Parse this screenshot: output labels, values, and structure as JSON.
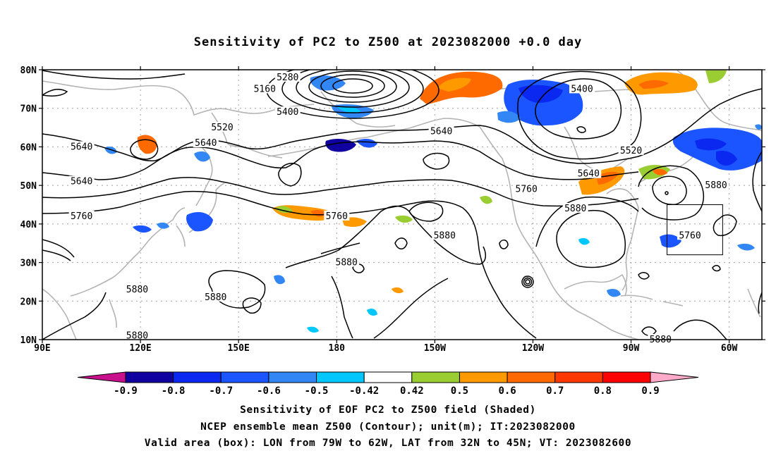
{
  "title": "Sensitivity of PC2 to Z500 at 2023082000 +0.0 day",
  "map": {
    "lat_labels": [
      "80N",
      "70N",
      "60N",
      "50N",
      "40N",
      "30N",
      "20N",
      "10N"
    ],
    "lon_labels": [
      "90E",
      "120E",
      "150E",
      "180",
      "150W",
      "120W",
      "90W",
      "60W"
    ],
    "extent": {
      "lon_min": 90,
      "lon_max": 310,
      "lat_min": 10,
      "lat_max": 80
    },
    "contour_labels": [
      {
        "text": "5280",
        "lon": 165,
        "lat": 78
      },
      {
        "text": "5160",
        "lon": 158,
        "lat": 75
      },
      {
        "text": "5400",
        "lon": 255,
        "lat": 75
      },
      {
        "text": "5400",
        "lon": 165,
        "lat": 69
      },
      {
        "text": "5520",
        "lon": 145,
        "lat": 65
      },
      {
        "text": "5640",
        "lon": 102,
        "lat": 60
      },
      {
        "text": "5640",
        "lon": 140,
        "lat": 61
      },
      {
        "text": "5640",
        "lon": 212,
        "lat": 64
      },
      {
        "text": "5520",
        "lon": 270,
        "lat": 59
      },
      {
        "text": "5640",
        "lon": 257,
        "lat": 53
      },
      {
        "text": "5640",
        "lon": 102,
        "lat": 51
      },
      {
        "text": "5760",
        "lon": 102,
        "lat": 42
      },
      {
        "text": "5760",
        "lon": 180,
        "lat": 42
      },
      {
        "text": "5760",
        "lon": 238,
        "lat": 49
      },
      {
        "text": "5880",
        "lon": 253,
        "lat": 44
      },
      {
        "text": "5880",
        "lon": 296,
        "lat": 50
      },
      {
        "text": "5760",
        "lon": 288,
        "lat": 37
      },
      {
        "text": "5880",
        "lon": 213,
        "lat": 37
      },
      {
        "text": "5880",
        "lon": 183,
        "lat": 30
      },
      {
        "text": "5880",
        "lon": 119,
        "lat": 23
      },
      {
        "text": "5880",
        "lon": 143,
        "lat": 21
      },
      {
        "text": "5880",
        "lon": 119,
        "lat": 11
      },
      {
        "text": "5880",
        "lon": 279,
        "lat": 10
      }
    ],
    "valid_box": {
      "lon_min": 281,
      "lon_max": 298,
      "lat_min": 32,
      "lat_max": 45
    }
  },
  "colorbar": {
    "labels": [
      "-0.9",
      "-0.8",
      "-0.7",
      "-0.6",
      "-0.5",
      "-0.42",
      "0.42",
      "0.5",
      "0.6",
      "0.7",
      "0.8",
      "0.9"
    ],
    "colors": [
      "#1000a0",
      "#0a28f0",
      "#1a55ff",
      "#3287f5",
      "#00c8ff",
      "#ffffff",
      "#9acd32",
      "#ff9900",
      "#ff6a00",
      "#ff3700",
      "#ff0000"
    ],
    "low_triangle_color": "#c8108c",
    "high_triangle_color": "#ffaac8"
  },
  "captions": [
    "Sensitivity of EOF PC2 to Z500 field (Shaded)",
    "NCEP ensemble mean Z500 (Contour); unit(m); IT:2023082000",
    "Valid area (box): LON from 79W to 62W, LAT from 32N to 45N; VT: 2023082600"
  ]
}
